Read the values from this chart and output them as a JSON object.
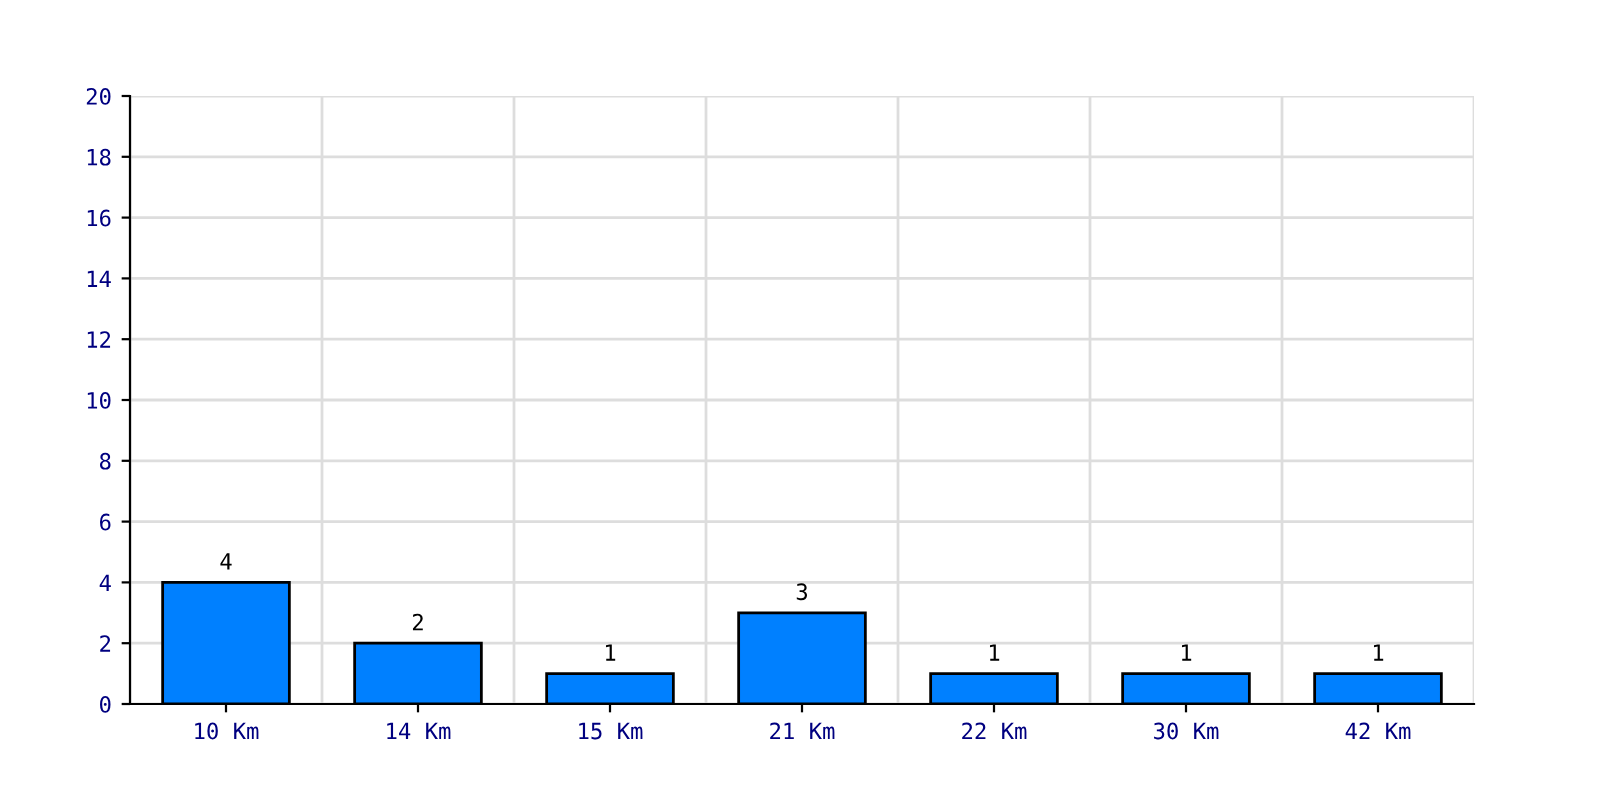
{
  "chart_data": {
    "type": "bar",
    "categories": [
      "10 Km",
      "14 Km",
      "15 Km",
      "21 Km",
      "22 Km",
      "30 Km",
      "42 Km"
    ],
    "values": [
      4,
      2,
      1,
      3,
      1,
      1,
      1
    ],
    "color": "#0080ff",
    "ylim": [
      0,
      20
    ],
    "yticks": [
      0,
      2,
      4,
      6,
      8,
      10,
      12,
      14,
      16,
      18,
      20
    ],
    "grid": true,
    "data_labels": true
  }
}
